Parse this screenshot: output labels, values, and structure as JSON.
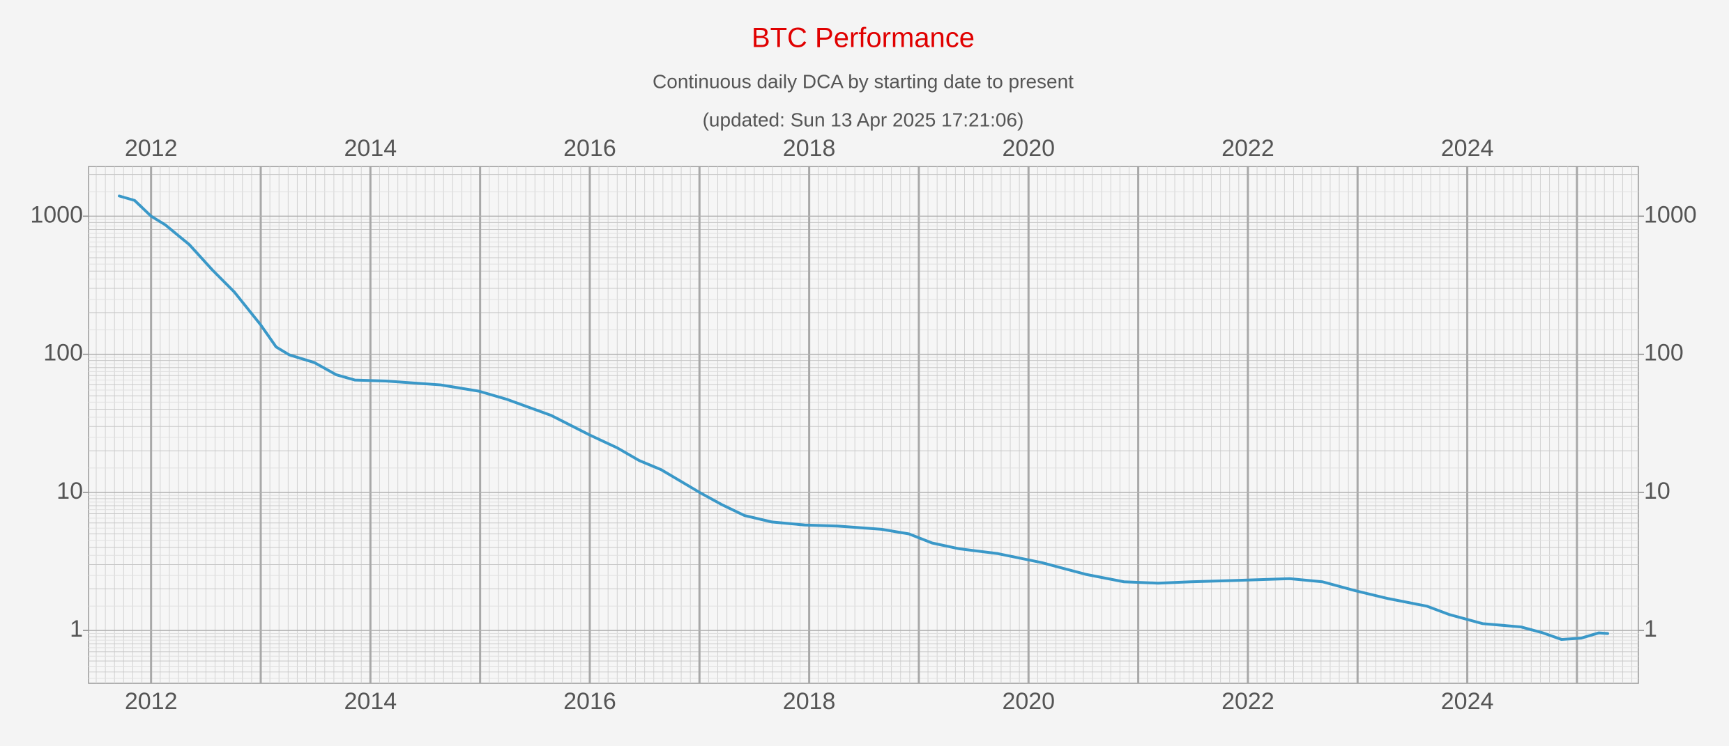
{
  "chart_data": {
    "type": "line",
    "title": "BTC Performance",
    "subtitle": "Continuous daily DCA by starting date to present",
    "updated": "(updated: Sun 13 Apr 2025 17:21:06)",
    "x": [
      2011.71,
      2011.85,
      2012.0,
      2012.13,
      2012.35,
      2012.56,
      2012.76,
      2013.0,
      2013.14,
      2013.26,
      2013.49,
      2013.69,
      2013.86,
      2014.14,
      2014.64,
      2014.99,
      2015.25,
      2015.65,
      2016.0,
      2016.25,
      2016.45,
      2016.65,
      2017.0,
      2017.21,
      2017.41,
      2017.66,
      2017.96,
      2018.26,
      2018.66,
      2018.91,
      2019.12,
      2019.37,
      2019.72,
      2020.12,
      2020.52,
      2020.87,
      2021.18,
      2021.48,
      2021.88,
      2022.38,
      2022.68,
      2022.98,
      2023.28,
      2023.63,
      2023.84,
      2024.14,
      2024.49,
      2024.69,
      2024.86,
      2025.04,
      2025.2,
      2025.28
    ],
    "values": [
      1400,
      1300,
      1000,
      865,
      621,
      407,
      282,
      163,
      113,
      99,
      87,
      71,
      65,
      64,
      60,
      54,
      47,
      36,
      26,
      21,
      17,
      14.6,
      10,
      8.1,
      6.8,
      6.1,
      5.8,
      5.7,
      5.4,
      5.0,
      4.3,
      3.9,
      3.6,
      3.1,
      2.55,
      2.25,
      2.2,
      2.25,
      2.3,
      2.37,
      2.25,
      1.94,
      1.7,
      1.5,
      1.3,
      1.12,
      1.06,
      0.96,
      0.86,
      0.88,
      0.96,
      0.95
    ],
    "color": "#3a98c8",
    "xlim": [
      2011.43,
      2025.56
    ],
    "xticks": [
      2012,
      2014,
      2016,
      2018,
      2020,
      2022,
      2024
    ],
    "ylim": [
      0.414,
      2290
    ],
    "yticks": [
      1,
      10,
      100,
      1000
    ],
    "log_y": true,
    "grid": true
  }
}
